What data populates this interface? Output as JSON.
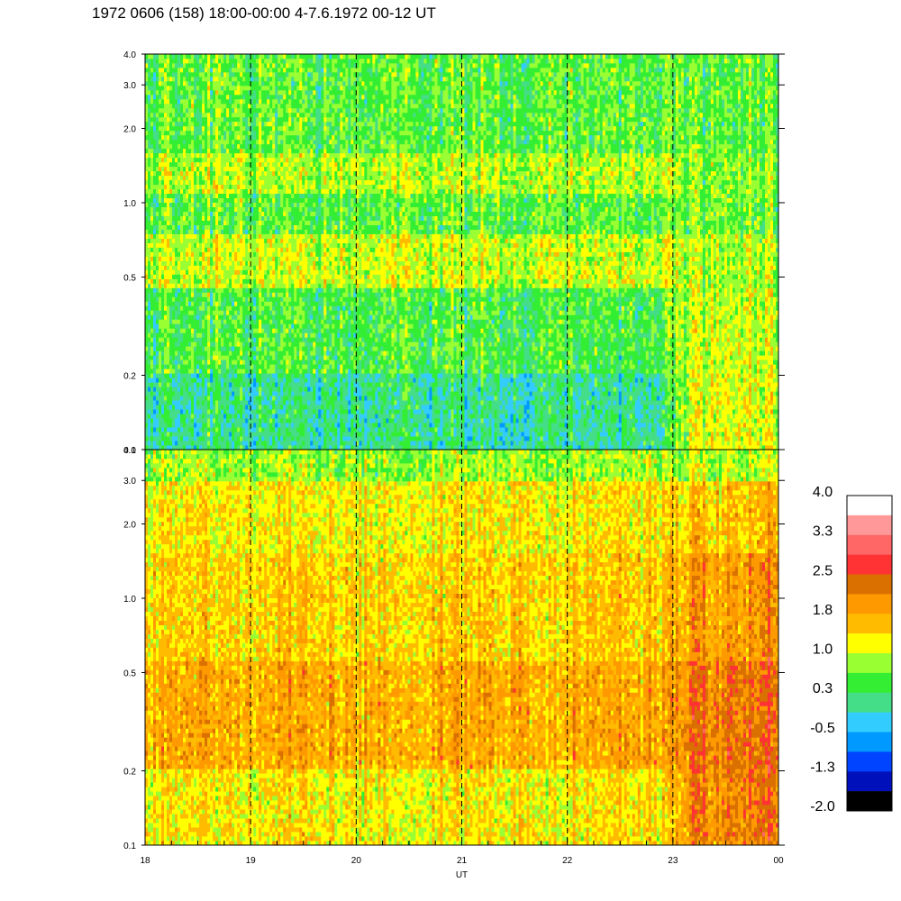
{
  "title": "1972 0606 (158) 18:00-00:00 4-7.6.1972  00-12 UT",
  "chart_data": [
    {
      "type": "heatmap",
      "panel": "top",
      "x_range": [
        18,
        24
      ],
      "xlabel": "",
      "y_scale": "log",
      "ylim": [
        0.1,
        4.0
      ],
      "y_ticks": [
        "0.1",
        "0.2",
        "0.5",
        "1.0",
        "2.0",
        "3.0",
        "4.0"
      ],
      "dashed_hour_lines": [
        19,
        20,
        21,
        22,
        23
      ],
      "band_structure": [
        {
          "y_from": 0.1,
          "y_to": 0.2,
          "level_18_to_23": 0.0,
          "level_23_to_24": 1.1
        },
        {
          "y_from": 0.2,
          "y_to": 0.45,
          "level_18_to_23": 0.4,
          "level_23_to_24": 1.0
        },
        {
          "y_from": 0.45,
          "y_to": 0.75,
          "level_18_to_23": 1.0,
          "level_23_to_24": 0.9
        },
        {
          "y_from": 0.75,
          "y_to": 1.1,
          "level_18_to_23": 0.5,
          "level_23_to_24": 0.6
        },
        {
          "y_from": 1.1,
          "y_to": 1.6,
          "level_18_to_23": 0.9,
          "level_23_to_24": 0.7
        },
        {
          "y_from": 1.6,
          "y_to": 4.0,
          "level_18_to_23": 0.5,
          "level_23_to_24": 0.5
        }
      ]
    },
    {
      "type": "heatmap",
      "panel": "bottom",
      "x_range": [
        18,
        24
      ],
      "x_ticks": [
        "18",
        "19",
        "20",
        "21",
        "22",
        "23",
        "00"
      ],
      "xlabel": "UT",
      "y_scale": "log",
      "ylim": [
        0.1,
        4.0
      ],
      "y_ticks": [
        "0.1",
        "0.2",
        "0.5",
        "1.0",
        "2.0",
        "3.0",
        "4.0"
      ],
      "dashed_hour_lines": [
        19,
        20,
        21,
        22,
        23
      ],
      "band_structure": [
        {
          "y_from": 0.1,
          "y_to": 0.2,
          "level_18_to_23": 1.3,
          "level_23_to_24": 2.2
        },
        {
          "y_from": 0.2,
          "y_to": 0.55,
          "level_18_to_23": 1.8,
          "level_23_to_24": 2.3
        },
        {
          "y_from": 0.55,
          "y_to": 1.5,
          "level_18_to_23": 1.5,
          "level_23_to_24": 2.0
        },
        {
          "y_from": 1.5,
          "y_to": 3.0,
          "level_18_to_23": 1.3,
          "level_23_to_24": 1.6
        },
        {
          "y_from": 3.0,
          "y_to": 4.0,
          "level_18_to_23": 0.8,
          "level_23_to_24": 0.9
        }
      ]
    }
  ],
  "colorbar": {
    "range": [
      -2.0,
      4.0
    ],
    "labels": [
      "4.0",
      "3.3",
      "2.5",
      "1.8",
      "1.0",
      "0.3",
      "-0.5",
      "-1.3",
      "-2.0"
    ],
    "colors_top_to_bottom": [
      "#ffffff",
      "#ff9999",
      "#ff6666",
      "#ff3333",
      "#d97000",
      "#ff9900",
      "#ffbb00",
      "#ffff00",
      "#99ff33",
      "#33ee33",
      "#44dd88",
      "#33ccff",
      "#0099ff",
      "#0044ff",
      "#0011bb",
      "#000000"
    ]
  }
}
